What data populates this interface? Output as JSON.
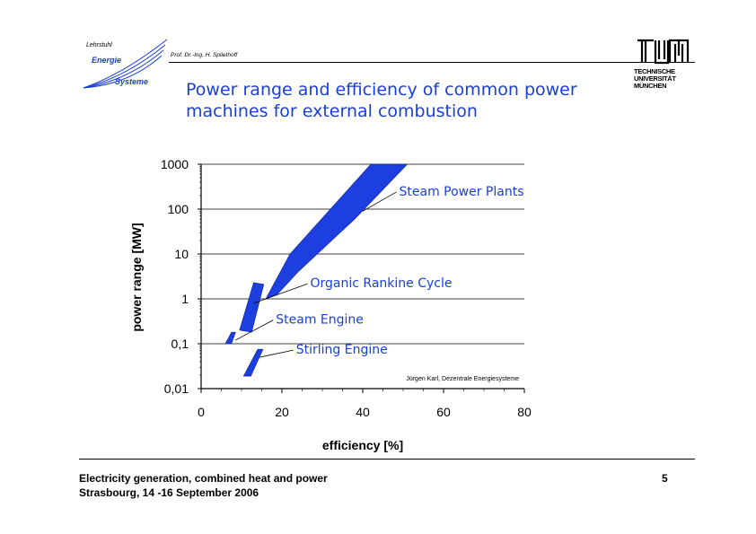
{
  "header": {
    "logo_text_1": "Lehrstuhl",
    "logo_text_2": "Energie",
    "logo_text_3": "Systeme",
    "author": "Prof. Dr.-Ing. H. Spliethoff",
    "title_line1": "Power range and efficiency of common power",
    "title_line2": "machines for external combustion",
    "tum_lines": [
      "TECHNISCHE",
      "UNIVERSITÄT",
      "MÜNCHEN"
    ]
  },
  "footer": {
    "line1": "Electricity generation, combined heat and power",
    "line2": "Strasbourg, 14 -16 September 2006",
    "page": "5"
  },
  "colors": {
    "title": "#1a3fd6",
    "band": "#1d3fe0",
    "label": "#1a3fd6"
  },
  "chart_data": {
    "type": "area",
    "xlabel": "efficiency [%]",
    "ylabel": "power range [MW]",
    "xlim": [
      0,
      80
    ],
    "ylim": [
      0.01,
      1000
    ],
    "yscale": "log",
    "x_ticks": [
      "0",
      "20",
      "40",
      "60",
      "80"
    ],
    "y_ticks": [
      "0,01",
      "0,1",
      "1",
      "10",
      "100",
      "1000"
    ],
    "grid": "horizontal",
    "source_note": "Jürgen Karl, Dezentrale Energiesysteme",
    "series": [
      {
        "name": "Steam Power Plants",
        "polygon": [
          [
            16,
            1.0
          ],
          [
            22,
            10
          ],
          [
            42,
            1000
          ],
          [
            51,
            1000
          ],
          [
            38,
            60
          ],
          [
            24,
            4
          ],
          [
            19,
            1.3
          ]
        ]
      },
      {
        "name": "Organic Rankine Cycle",
        "polygon": [
          [
            13,
            2.3
          ],
          [
            15.5,
            2.1
          ],
          [
            12.5,
            0.18
          ],
          [
            9.5,
            0.2
          ]
        ]
      },
      {
        "name": "Steam Engine",
        "polygon": [
          [
            7.5,
            0.18
          ],
          [
            8.5,
            0.18
          ],
          [
            7.5,
            0.1
          ],
          [
            6,
            0.1
          ]
        ]
      },
      {
        "name": "Stirling Engine",
        "polygon": [
          [
            14,
            0.075
          ],
          [
            15.3,
            0.075
          ],
          [
            12.3,
            0.019
          ],
          [
            10.5,
            0.019
          ]
        ]
      }
    ],
    "labels": [
      {
        "text": "Steam Power Plants",
        "series": "Steam Power Plants",
        "at": [
          49,
          200
        ],
        "pointer": [
          40,
          90
        ]
      },
      {
        "text": "Organic Rankine Cycle",
        "series": "Organic Rankine Cycle",
        "at": [
          27,
          1.8
        ],
        "pointer": [
          13,
          0.8
        ]
      },
      {
        "text": "Steam Engine",
        "series": "Steam Engine",
        "at": [
          18.5,
          0.28
        ],
        "pointer": [
          8.5,
          0.12
        ]
      },
      {
        "text": "Stirling Engine",
        "series": "Stirling Engine",
        "at": [
          23.5,
          0.06
        ],
        "pointer": [
          14.5,
          0.05
        ]
      }
    ]
  }
}
